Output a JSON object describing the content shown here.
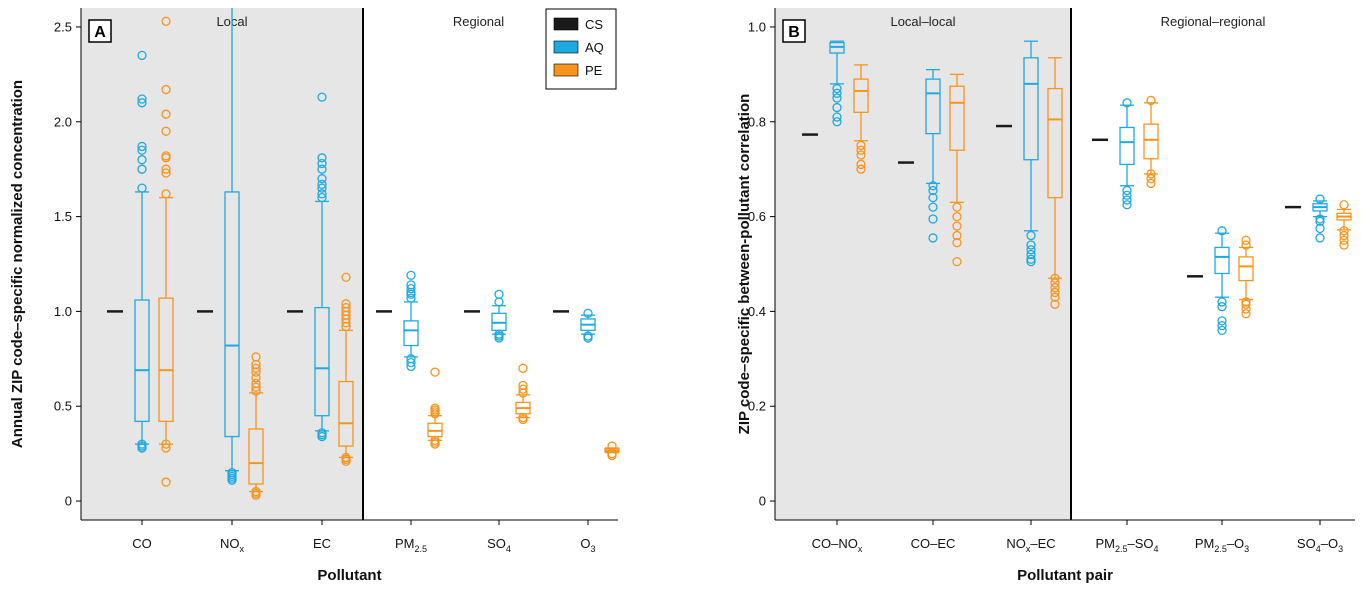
{
  "colors": {
    "CS": "#1a1a1a",
    "AQ": "#1ea9e1",
    "PE": "#f7941d",
    "shade": "#e6e6e6"
  },
  "chart_data": [
    {
      "type": "box",
      "panel_label": "A",
      "xlabel": "Pollutant",
      "ylabel": "Annual ZIP code–specific normalized concentration",
      "ylim": [
        -0.1,
        2.6
      ],
      "yticks": [
        "0",
        "0.5",
        "1.0",
        "1.5",
        "2.0",
        "2.5"
      ],
      "regions": [
        {
          "label": "Local",
          "shaded": true
        },
        {
          "label": "Regional",
          "shaded": false
        }
      ],
      "legend": {
        "placement": "top-right",
        "entries": [
          "CS",
          "AQ",
          "PE"
        ]
      },
      "categories": [
        {
          "name": "CO",
          "sub": "",
          "region": 0,
          "CS": 1.0,
          "AQ": {
            "q1": 0.42,
            "median": 0.69,
            "q3": 1.06,
            "wlo": 0.3,
            "whi": 1.63,
            "outliers": [
              0.28,
              0.29,
              0.3,
              1.65,
              1.75,
              1.8,
              1.85,
              1.87,
              2.1,
              2.12,
              2.35
            ]
          },
          "PE": {
            "q1": 0.42,
            "median": 0.69,
            "q3": 1.07,
            "wlo": 0.3,
            "whi": 1.6,
            "outliers": [
              0.1,
              0.28,
              0.3,
              1.62,
              1.73,
              1.75,
              1.81,
              1.82,
              1.95,
              2.04,
              2.17,
              2.53
            ]
          }
        },
        {
          "name": "NO",
          "sub": "x",
          "region": 0,
          "CS": 1.0,
          "AQ": {
            "q1": 0.34,
            "median": 0.82,
            "q3": 1.63,
            "wlo": 0.16,
            "whi": 2.62,
            "outliers": [
              0.11,
              0.12,
              0.13,
              0.14,
              0.15
            ]
          },
          "PE": {
            "q1": 0.09,
            "median": 0.2,
            "q3": 0.38,
            "wlo": 0.05,
            "whi": 0.57,
            "outliers": [
              0.03,
              0.04,
              0.05,
              0.58,
              0.6,
              0.62,
              0.65,
              0.68,
              0.7,
              0.72,
              0.76
            ]
          }
        },
        {
          "name": "EC",
          "sub": "",
          "region": 0,
          "CS": 1.0,
          "AQ": {
            "q1": 0.45,
            "median": 0.7,
            "q3": 1.02,
            "wlo": 0.37,
            "whi": 1.58,
            "outliers": [
              0.34,
              0.35,
              0.36,
              1.6,
              1.62,
              1.65,
              1.67,
              1.7,
              1.75,
              1.78,
              1.81,
              2.13
            ]
          },
          "PE": {
            "q1": 0.29,
            "median": 0.41,
            "q3": 0.63,
            "wlo": 0.23,
            "whi": 0.9,
            "outliers": [
              0.21,
              0.22,
              0.23,
              0.92,
              0.94,
              0.96,
              0.98,
              1.0,
              1.02,
              1.04,
              1.18
            ]
          }
        },
        {
          "name": "PM",
          "sub": "2.5",
          "region": 1,
          "CS": 1.0,
          "AQ": {
            "q1": 0.82,
            "median": 0.9,
            "q3": 0.95,
            "wlo": 0.76,
            "whi": 1.05,
            "outliers": [
              0.71,
              0.73,
              0.75,
              1.07,
              1.09,
              1.1,
              1.12,
              1.14,
              1.19
            ]
          },
          "PE": {
            "q1": 0.34,
            "median": 0.37,
            "q3": 0.41,
            "wlo": 0.32,
            "whi": 0.45,
            "outliers": [
              0.3,
              0.31,
              0.32,
              0.46,
              0.47,
              0.48,
              0.49,
              0.68
            ]
          }
        },
        {
          "name": "SO",
          "sub": "4",
          "region": 1,
          "CS": 1.0,
          "AQ": {
            "q1": 0.9,
            "median": 0.94,
            "q3": 0.99,
            "wlo": 0.88,
            "whi": 1.03,
            "outliers": [
              0.86,
              0.87,
              0.88,
              1.05,
              1.09
            ]
          },
          "PE": {
            "q1": 0.46,
            "median": 0.49,
            "q3": 0.52,
            "wlo": 0.44,
            "whi": 0.56,
            "outliers": [
              0.43,
              0.44,
              0.57,
              0.59,
              0.61,
              0.7
            ]
          }
        },
        {
          "name": "O",
          "sub": "3",
          "region": 1,
          "CS": 1.0,
          "AQ": {
            "q1": 0.9,
            "median": 0.93,
            "q3": 0.96,
            "wlo": 0.88,
            "whi": 0.98,
            "outliers": [
              0.86,
              0.87,
              0.99
            ]
          },
          "PE": {
            "q1": 0.26,
            "median": 0.265,
            "q3": 0.275,
            "wlo": 0.255,
            "whi": 0.28,
            "outliers": [
              0.24,
              0.25,
              0.29
            ]
          }
        }
      ]
    },
    {
      "type": "box",
      "panel_label": "B",
      "xlabel": "Pollutant pair",
      "ylabel": "ZIP code–specific between-pollutant correlation",
      "ylim": [
        -0.04,
        1.04
      ],
      "yticks": [
        "0",
        "0.2",
        "0.4",
        "0.6",
        "0.8",
        "1.0"
      ],
      "regions": [
        {
          "label": "Local–local",
          "shaded": true
        },
        {
          "label": "Regional–regional",
          "shaded": false
        }
      ],
      "categories": [
        {
          "parts": [
            [
              "CO",
              ""
            ],
            [
              "–NO",
              ""
            ],
            [
              "",
              "x"
            ]
          ],
          "region": 0,
          "CS": 0.773,
          "AQ": {
            "q1": 0.945,
            "median": 0.958,
            "q3": 0.967,
            "wlo": 0.88,
            "whi": 0.97,
            "outliers": [
              0.8,
              0.81,
              0.83,
              0.85,
              0.86,
              0.87
            ]
          },
          "PE": {
            "q1": 0.82,
            "median": 0.865,
            "q3": 0.89,
            "wlo": 0.76,
            "whi": 0.92,
            "outliers": [
              0.7,
              0.71,
              0.73,
              0.74,
              0.75
            ]
          }
        },
        {
          "parts": [
            [
              "CO–EC",
              ""
            ]
          ],
          "region": 0,
          "CS": 0.714,
          "AQ": {
            "q1": 0.775,
            "median": 0.86,
            "q3": 0.89,
            "wlo": 0.67,
            "whi": 0.91,
            "outliers": [
              0.555,
              0.595,
              0.62,
              0.64,
              0.655,
              0.665
            ]
          },
          "PE": {
            "q1": 0.74,
            "median": 0.84,
            "q3": 0.875,
            "wlo": 0.63,
            "whi": 0.9,
            "outliers": [
              0.505,
              0.545,
              0.56,
              0.58,
              0.6,
              0.62
            ]
          }
        },
        {
          "parts": [
            [
              "NO",
              ""
            ],
            [
              "",
              "x"
            ],
            [
              "–EC",
              ""
            ]
          ],
          "region": 0,
          "CS": 0.791,
          "AQ": {
            "q1": 0.72,
            "median": 0.88,
            "q3": 0.935,
            "wlo": 0.57,
            "whi": 0.97,
            "outliers": [
              0.505,
              0.51,
              0.52,
              0.53,
              0.54,
              0.56
            ]
          },
          "PE": {
            "q1": 0.64,
            "median": 0.805,
            "q3": 0.87,
            "wlo": 0.47,
            "whi": 0.935,
            "outliers": [
              0.415,
              0.43,
              0.44,
              0.45,
              0.46,
              0.47
            ]
          }
        },
        {
          "parts": [
            [
              "PM",
              ""
            ],
            [
              "",
              "2.5"
            ],
            [
              "–SO",
              ""
            ],
            [
              "",
              "4"
            ]
          ],
          "region": 1,
          "CS": 0.762,
          "AQ": {
            "q1": 0.71,
            "median": 0.757,
            "q3": 0.788,
            "wlo": 0.665,
            "whi": 0.835,
            "outliers": [
              0.625,
              0.635,
              0.645,
              0.655,
              0.84
            ]
          },
          "PE": {
            "q1": 0.722,
            "median": 0.762,
            "q3": 0.795,
            "wlo": 0.69,
            "whi": 0.84,
            "outliers": [
              0.67,
              0.68,
              0.69,
              0.845
            ]
          }
        },
        {
          "parts": [
            [
              "PM",
              ""
            ],
            [
              "",
              "2.5"
            ],
            [
              "–O",
              ""
            ],
            [
              "",
              "3"
            ]
          ],
          "region": 1,
          "CS": 0.474,
          "AQ": {
            "q1": 0.48,
            "median": 0.515,
            "q3": 0.535,
            "wlo": 0.43,
            "whi": 0.565,
            "outliers": [
              0.36,
              0.37,
              0.38,
              0.41,
              0.42,
              0.57
            ]
          },
          "PE": {
            "q1": 0.465,
            "median": 0.495,
            "q3": 0.515,
            "wlo": 0.425,
            "whi": 0.535,
            "outliers": [
              0.395,
              0.405,
              0.415,
              0.42,
              0.54,
              0.55
            ]
          }
        },
        {
          "parts": [
            [
              "SO",
              ""
            ],
            [
              "",
              "4"
            ],
            [
              "–O",
              ""
            ],
            [
              "",
              "3"
            ]
          ],
          "region": 1,
          "CS": 0.62,
          "AQ": {
            "q1": 0.612,
            "median": 0.62,
            "q3": 0.627,
            "wlo": 0.6,
            "whi": 0.633,
            "outliers": [
              0.555,
              0.575,
              0.59,
              0.595,
              0.637
            ]
          },
          "PE": {
            "q1": 0.593,
            "median": 0.6,
            "q3": 0.607,
            "wlo": 0.572,
            "whi": 0.615,
            "outliers": [
              0.54,
              0.55,
              0.56,
              0.57,
              0.625
            ]
          }
        }
      ]
    }
  ]
}
